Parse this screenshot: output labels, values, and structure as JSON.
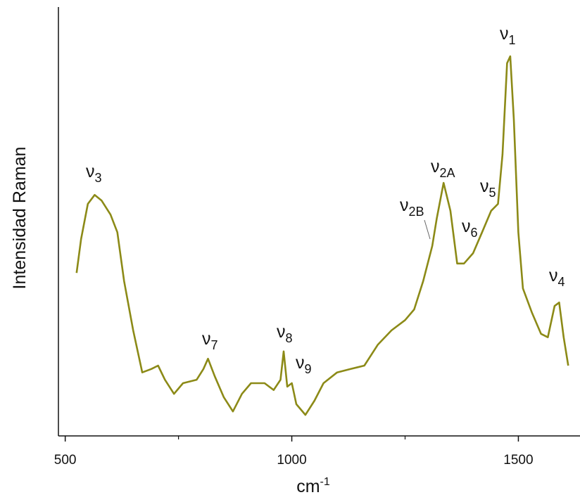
{
  "chart_data": {
    "type": "line",
    "xlabel": "cm",
    "xlabel_sup": "-1",
    "ylabel": "Intensidad Raman",
    "xlim": [
      485,
      1636
    ],
    "ylim": [
      0,
      100
    ],
    "xticks": [
      500,
      1000,
      1500
    ],
    "xminorticks": [
      750,
      1250
    ],
    "grid": false,
    "series": [
      {
        "color": "#8c8a17",
        "x": [
          525,
          535,
          550,
          565,
          580,
          600,
          615,
          630,
          650,
          670,
          690,
          705,
          720,
          740,
          760,
          790,
          805,
          815,
          830,
          850,
          870,
          890,
          910,
          940,
          960,
          975,
          982,
          990,
          1000,
          1010,
          1030,
          1050,
          1070,
          1100,
          1130,
          1160,
          1190,
          1220,
          1250,
          1270,
          1290,
          1310,
          1320,
          1335,
          1350,
          1365,
          1380,
          1400,
          1420,
          1440,
          1455,
          1465,
          1475,
          1482,
          1490,
          1500,
          1510,
          1530,
          1550,
          1565,
          1580,
          1590,
          1600,
          1610
        ],
        "values": [
          38.0,
          45.9,
          54.1,
          56.2,
          54.9,
          51.6,
          47.5,
          36.1,
          24.6,
          14.8,
          15.6,
          16.4,
          13.1,
          9.8,
          12.3,
          13.1,
          15.6,
          18.0,
          13.9,
          9.0,
          5.7,
          9.8,
          12.3,
          12.3,
          10.7,
          13.1,
          19.7,
          11.5,
          12.3,
          7.4,
          4.9,
          8.2,
          12.3,
          14.8,
          15.6,
          16.4,
          21.3,
          24.6,
          27.0,
          29.5,
          36.1,
          44.3,
          50.8,
          59.0,
          52.5,
          40.2,
          40.2,
          42.6,
          47.5,
          52.5,
          54.1,
          65.6,
          86.9,
          88.5,
          73.8,
          47.5,
          34.4,
          28.7,
          23.8,
          23.0,
          30.3,
          31.1,
          23.0,
          16.4
        ]
      }
    ],
    "annotations": [
      {
        "label": "ν",
        "sub": "3"
      },
      {
        "label": "ν",
        "sub": "7"
      },
      {
        "label": "ν",
        "sub": "8"
      },
      {
        "label": "ν",
        "sub": "9"
      },
      {
        "label": "ν",
        "sub": "2B"
      },
      {
        "label": "ν",
        "sub": "2A"
      },
      {
        "label": "ν",
        "sub": "6"
      },
      {
        "label": "ν",
        "sub": "5"
      },
      {
        "label": "ν",
        "sub": "1"
      },
      {
        "label": "ν",
        "sub": "4"
      }
    ]
  }
}
